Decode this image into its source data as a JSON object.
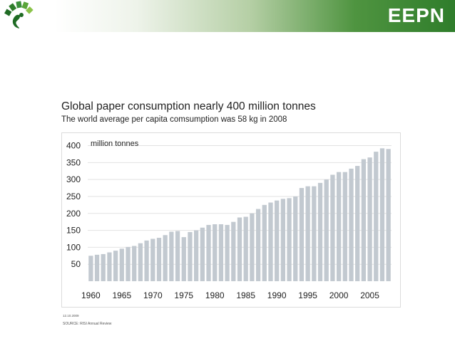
{
  "header": {
    "brand": "EEPN",
    "colors": {
      "green_dark": "#2f7d2b",
      "green_light": "#8bc34a",
      "logo_green": "#3a8f3a"
    }
  },
  "slide": {
    "title": "Global paper consumption nearly 400 million tonnes",
    "subtitle": "The world average per capita comsumption was 58 kg in 2008",
    "footer_date": "12.10.2009",
    "footer_source": "SOURCE: RISI Annual Review"
  },
  "chart_data": {
    "type": "bar",
    "title": "Global paper consumption nearly 400 million tonnes",
    "ylabel": "million tonnes",
    "xlabel": "",
    "ylim": [
      0,
      420
    ],
    "yticks": [
      50,
      100,
      150,
      200,
      250,
      300,
      350,
      400
    ],
    "xticks": [
      1960,
      1965,
      1970,
      1975,
      1980,
      1985,
      1990,
      1995,
      2000,
      2005
    ],
    "bar_color": "#c2c9d0",
    "grid": true,
    "categories": [
      1960,
      1961,
      1962,
      1963,
      1964,
      1965,
      1966,
      1967,
      1968,
      1969,
      1970,
      1971,
      1972,
      1973,
      1974,
      1975,
      1976,
      1977,
      1978,
      1979,
      1980,
      1981,
      1982,
      1983,
      1984,
      1985,
      1986,
      1987,
      1988,
      1989,
      1990,
      1991,
      1992,
      1993,
      1994,
      1995,
      1996,
      1997,
      1998,
      1999,
      2000,
      2001,
      2002,
      2003,
      2004,
      2005,
      2006,
      2007,
      2008
    ],
    "values": [
      75,
      78,
      80,
      85,
      90,
      96,
      101,
      104,
      112,
      120,
      125,
      128,
      136,
      146,
      148,
      130,
      145,
      150,
      158,
      166,
      168,
      168,
      166,
      175,
      188,
      190,
      200,
      213,
      225,
      232,
      238,
      243,
      245,
      250,
      275,
      280,
      280,
      290,
      300,
      314,
      322,
      322,
      332,
      340,
      360,
      365,
      382,
      392,
      390
    ]
  }
}
